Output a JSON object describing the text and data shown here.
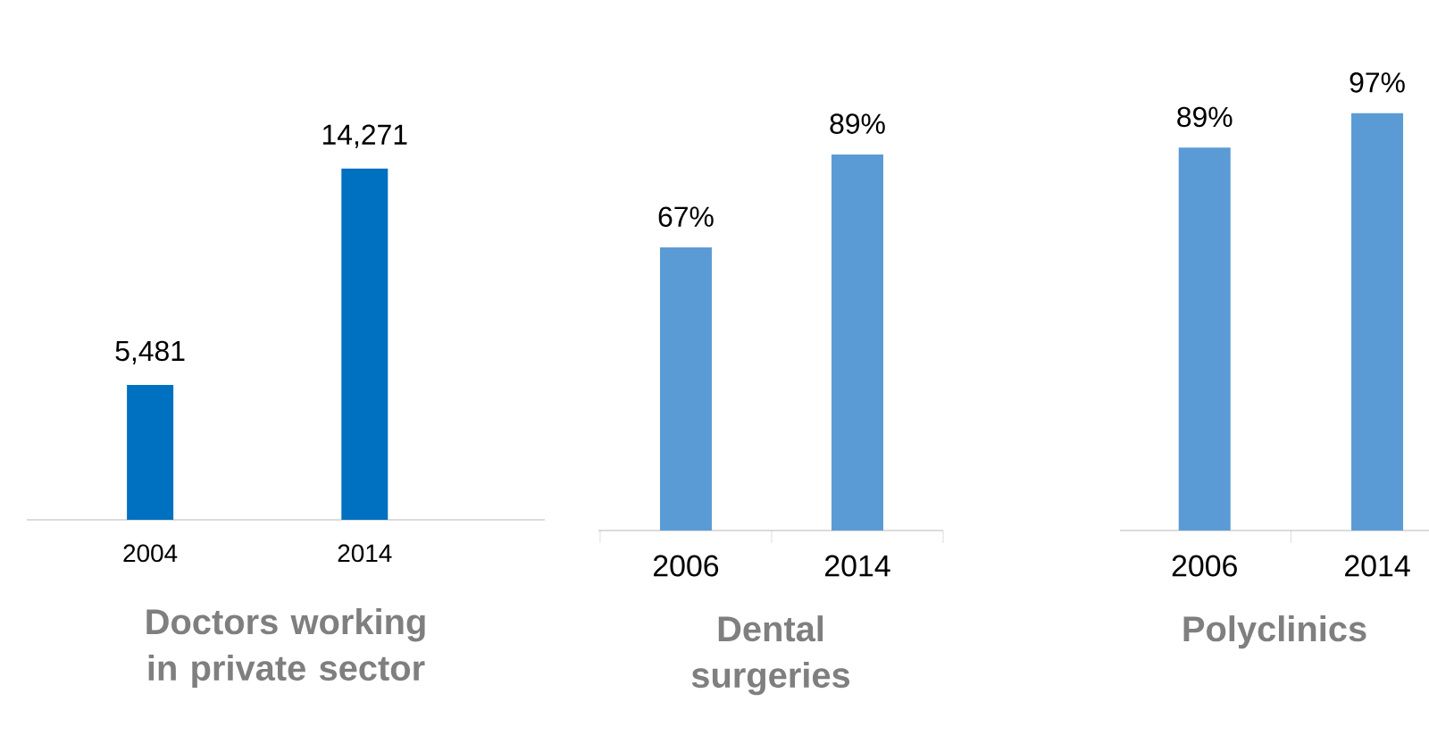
{
  "chart_data": [
    {
      "type": "bar",
      "title": "Doctors working in private sector",
      "categories": [
        "2004",
        "2014"
      ],
      "values": [
        5481,
        14271
      ],
      "value_labels": [
        "5,481",
        "14,271"
      ],
      "color": "#0070c0"
    },
    {
      "type": "bar",
      "title": "Dental surgeries",
      "categories": [
        "2006",
        "2014"
      ],
      "values": [
        67,
        89
      ],
      "value_labels": [
        "67%",
        "89%"
      ],
      "color": "#5b9bd5"
    },
    {
      "type": "bar",
      "title": "Polyclinics",
      "categories": [
        "2006",
        "2014"
      ],
      "values": [
        89,
        97
      ],
      "value_labels": [
        "89%",
        "97%"
      ],
      "color": "#5b9bd5"
    }
  ]
}
